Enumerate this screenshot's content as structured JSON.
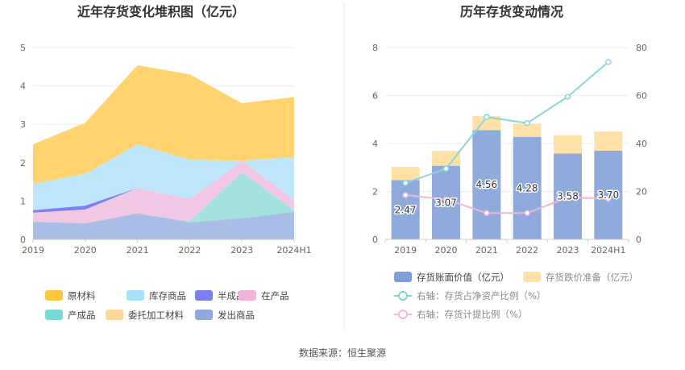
{
  "left_chart": {
    "title": "近年存货变化堆积图（亿元）",
    "legend": [
      {
        "label": "原材料",
        "color": "#FFC640",
        "icon": "legend-swatch"
      },
      {
        "label": "库存商品",
        "color": "#A8E1FA",
        "icon": "legend-swatch"
      },
      {
        "label": "半成品",
        "color": "#7B7FEF",
        "icon": "legend-swatch"
      },
      {
        "label": "在产品",
        "color": "#F2B3DA",
        "icon": "legend-swatch"
      },
      {
        "label": "产成品",
        "color": "#79D9D4",
        "icon": "legend-swatch"
      },
      {
        "label": "委托加工材料",
        "color": "#FFD79A",
        "icon": "legend-swatch"
      },
      {
        "label": "发出商品",
        "color": "#8EA9DC",
        "icon": "legend-swatch"
      }
    ]
  },
  "right_chart": {
    "title": "历年存货变动情况",
    "legend": [
      {
        "label": "存货账面价值（亿元）",
        "color": "#7C9FD8",
        "icon": "legend-swatch"
      },
      {
        "label": "存货跌价准备（亿元）",
        "color": "#FFE1A8",
        "icon": "legend-swatch"
      },
      {
        "label": "右轴：存货占净资产比例（%）",
        "color": "#7CD3D8",
        "icon": "legend-line-circle"
      },
      {
        "label": "右轴：存货计提比例（%）",
        "color": "#F2B8DC",
        "icon": "legend-line-circle"
      }
    ]
  },
  "source_text": "数据来源：恒生聚源",
  "chart_data": [
    {
      "type": "area",
      "stacked": true,
      "title": "近年存货变化堆积图（亿元）",
      "x": [
        "2019",
        "2020",
        "2021",
        "2022",
        "2023",
        "2024H1"
      ],
      "ylim": [
        0,
        5
      ],
      "yticks": [
        0,
        1,
        2,
        3,
        4,
        5
      ],
      "grid": true,
      "legend_position": "bottom",
      "series": [
        {
          "name": "发出商品",
          "color": "#A9BDE6",
          "values": [
            0.46,
            0.42,
            0.68,
            0.45,
            0.55,
            0.72
          ]
        },
        {
          "name": "委托加工材料",
          "color": "#FFD79A",
          "values": [
            0.0,
            0.0,
            0.0,
            0.0,
            0.0,
            0.0
          ]
        },
        {
          "name": "产成品",
          "color": "#A4E2DE",
          "values": [
            0.0,
            0.0,
            0.0,
            0.03,
            1.2,
            0.03
          ]
        },
        {
          "name": "在产品",
          "color": "#F2C7E3",
          "values": [
            0.24,
            0.36,
            0.66,
            0.57,
            0.3,
            0.28
          ]
        },
        {
          "name": "半成品",
          "color": "#7B7FEF",
          "values": [
            0.06,
            0.1,
            0.0,
            0.0,
            0.0,
            0.0
          ]
        },
        {
          "name": "库存商品",
          "color": "#BDE6FA",
          "values": [
            0.69,
            0.83,
            1.14,
            1.03,
            0.0,
            1.12
          ]
        },
        {
          "name": "原材料",
          "color": "#FFD36E",
          "values": [
            1.03,
            1.33,
            2.06,
            2.22,
            1.5,
            1.56
          ]
        }
      ]
    },
    {
      "type": "bar",
      "stacked": true,
      "title": "历年存货变动情况",
      "categories": [
        "2019",
        "2020",
        "2021",
        "2022",
        "2023",
        "2024H1"
      ],
      "ylim": [
        0,
        8
      ],
      "yticks": [
        0,
        2,
        4,
        6,
        8
      ],
      "y2lim": [
        0,
        80
      ],
      "y2ticks": [
        0,
        20,
        40,
        60,
        80
      ],
      "grid": true,
      "legend_position": "bottom",
      "series": [
        {
          "name": "存货账面价值（亿元）",
          "type": "bar",
          "color": "#8EABDC",
          "values": [
            2.47,
            3.07,
            4.56,
            4.28,
            3.58,
            3.7
          ],
          "labels": [
            "2.47",
            "3.07",
            "4.56",
            "4.28",
            "3.58",
            "3.70"
          ]
        },
        {
          "name": "存货跌价准备（亿元）",
          "type": "bar",
          "color": "#FFE1A8",
          "values": [
            0.56,
            0.62,
            0.58,
            0.55,
            0.76,
            0.8
          ]
        },
        {
          "name": "右轴：存货占净资产比例（%）",
          "type": "line",
          "axis": "right",
          "color": "#86D6DA",
          "values": [
            23.5,
            29.5,
            51,
            48.5,
            59.5,
            74
          ]
        },
        {
          "name": "右轴：存货计提比例（%）",
          "type": "line",
          "axis": "right",
          "color": "#F0B6DA",
          "values": [
            18.5,
            16.7,
            11,
            11,
            17.5,
            17
          ]
        }
      ]
    }
  ]
}
